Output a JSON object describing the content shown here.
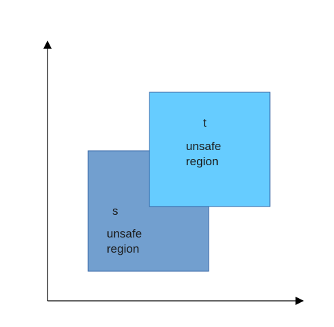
{
  "diagram": {
    "region_s": {
      "name": "s",
      "line1": "unsafe",
      "line2": "region",
      "fill": "#729fcf",
      "stroke": "#3465a4"
    },
    "region_t": {
      "name": "t",
      "line1": "unsafe",
      "line2": "region",
      "fill": "#66ccff",
      "stroke": "#3465a4"
    },
    "axis_color": "#000000"
  }
}
